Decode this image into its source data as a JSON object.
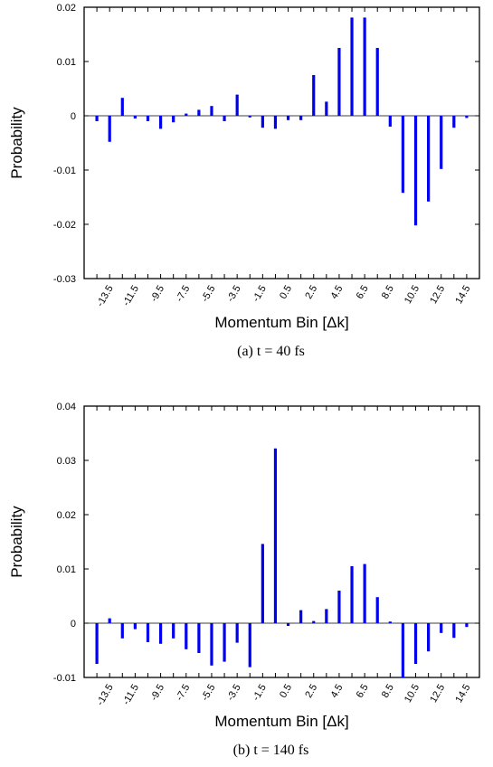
{
  "bar_color": "#0000ee",
  "chart_data": [
    {
      "type": "bar",
      "caption": "(a) t = 40 fs",
      "xlabel": "Momentum Bin [Δk]",
      "ylabel": "Probability",
      "ylim": [
        -0.03,
        0.02
      ],
      "yticks": [
        "-0.03",
        "-0.02",
        "-0.01",
        "0",
        "0.01",
        "0.02"
      ],
      "ytick_values": [
        -0.03,
        -0.02,
        -0.01,
        0,
        0.01,
        0.02
      ],
      "xticks": [
        "-13.5",
        "-11.5",
        "-9.5",
        "-7.5",
        "-5.5",
        "-3.5",
        "-1.5",
        "0.5",
        "2.5",
        "4.5",
        "6.5",
        "8.5",
        "10.5",
        "12.5",
        "14.5"
      ],
      "xtick_values": [
        -13.5,
        -11.5,
        -9.5,
        -7.5,
        -5.5,
        -3.5,
        -1.5,
        0.5,
        2.5,
        4.5,
        6.5,
        8.5,
        10.5,
        12.5,
        14.5
      ],
      "xlim": [
        -15.5,
        15.5
      ],
      "grid": false,
      "x": [
        -14.5,
        -13.5,
        -12.5,
        -11.5,
        -10.5,
        -9.5,
        -8.5,
        -7.5,
        -6.5,
        -5.5,
        -4.5,
        -3.5,
        -2.5,
        -1.5,
        -0.5,
        0.5,
        1.5,
        2.5,
        3.5,
        4.5,
        5.5,
        6.5,
        7.5,
        8.5,
        9.5,
        10.5,
        11.5,
        12.5,
        13.5,
        14.5
      ],
      "values": [
        -0.001,
        -0.0048,
        0.0033,
        -0.0005,
        -0.001,
        -0.0024,
        -0.0012,
        0.0004,
        0.0011,
        0.0018,
        -0.001,
        0.0039,
        -0.0003,
        -0.0022,
        -0.0024,
        -0.0008,
        -0.0008,
        0.0075,
        0.0026,
        0.0125,
        0.0181,
        0.0181,
        0.0125,
        -0.002,
        -0.0142,
        -0.0202,
        -0.0158,
        -0.0098,
        -0.0022,
        -0.0004
      ]
    },
    {
      "type": "bar",
      "caption": "(b) t = 140 fs",
      "xlabel": "Momentum Bin [Δk]",
      "ylabel": "Probability",
      "ylim": [
        -0.01,
        0.04
      ],
      "yticks": [
        "-0.01",
        "0",
        "0.01",
        "0.02",
        "0.03",
        "0.04"
      ],
      "ytick_values": [
        -0.01,
        0,
        0.01,
        0.02,
        0.03,
        0.04
      ],
      "xticks": [
        "-13.5",
        "-11.5",
        "-9.5",
        "-7.5",
        "-5.5",
        "-3.5",
        "-1.5",
        "0.5",
        "2.5",
        "4.5",
        "6.5",
        "8.5",
        "10.5",
        "12.5",
        "14.5"
      ],
      "xtick_values": [
        -13.5,
        -11.5,
        -9.5,
        -7.5,
        -5.5,
        -3.5,
        -1.5,
        0.5,
        2.5,
        4.5,
        6.5,
        8.5,
        10.5,
        12.5,
        14.5
      ],
      "xlim": [
        -15.5,
        15.5
      ],
      "grid": false,
      "x": [
        -14.5,
        -13.5,
        -12.5,
        -11.5,
        -10.5,
        -9.5,
        -8.5,
        -7.5,
        -6.5,
        -5.5,
        -4.5,
        -3.5,
        -2.5,
        -1.5,
        -0.5,
        0.5,
        1.5,
        2.5,
        3.5,
        4.5,
        5.5,
        6.5,
        7.5,
        8.5,
        9.5,
        10.5,
        11.5,
        12.5,
        13.5,
        14.5
      ],
      "values": [
        -0.0075,
        0.0009,
        -0.0028,
        -0.0011,
        -0.0035,
        -0.0038,
        -0.0028,
        -0.0048,
        -0.0055,
        -0.0078,
        -0.0071,
        -0.0036,
        -0.0081,
        0.0146,
        0.0322,
        -0.0005,
        0.0024,
        0.0004,
        0.0026,
        0.006,
        0.0105,
        0.0109,
        0.0048,
        0.0003,
        -0.01,
        -0.0075,
        -0.0052,
        -0.0018,
        -0.0027,
        -0.0007
      ]
    }
  ]
}
